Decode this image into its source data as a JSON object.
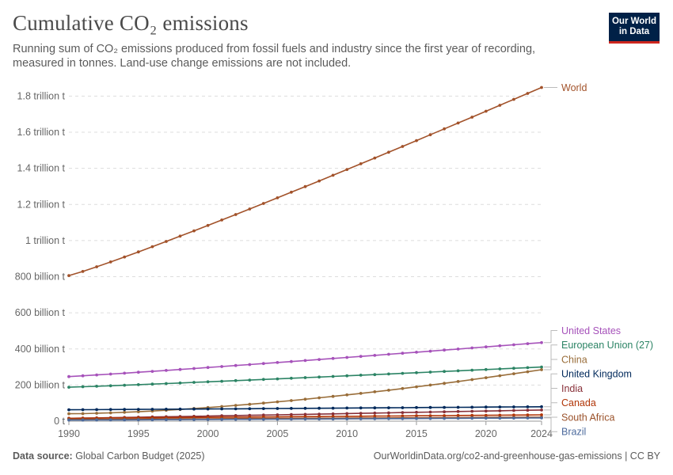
{
  "header": {
    "title": "Cumulative CO₂ emissions",
    "subtitle": "Running sum of CO₂ emissions produced from fossil fuels and industry since the first year of recording, measured in tonnes. Land-use change emissions are not included."
  },
  "logo": {
    "line1": "Our World",
    "line2": "in Data",
    "bg": "#002147",
    "accent": "#ce261e"
  },
  "footer": {
    "source_label": "Data source:",
    "source_text": "Global Carbon Budget (2025)",
    "url": "OurWorldinData.org/co2-and-greenhouse-gas-emissions | CC BY"
  },
  "chart_data": {
    "type": "line",
    "title": "Cumulative CO₂ emissions",
    "xlim": [
      1990,
      2024
    ],
    "ylim": [
      0,
      1850000000000
    ],
    "x_ticks": [
      {
        "value": 1990,
        "label": "1990"
      },
      {
        "value": 1995,
        "label": "1995"
      },
      {
        "value": 2000,
        "label": "2000"
      },
      {
        "value": 2005,
        "label": "2005"
      },
      {
        "value": 2010,
        "label": "2010"
      },
      {
        "value": 2015,
        "label": "2015"
      },
      {
        "value": 2020,
        "label": "2020"
      },
      {
        "value": 2024,
        "label": "2024"
      }
    ],
    "y_ticks": [
      {
        "value": 0,
        "label": "0 t"
      },
      {
        "value": 200000000000,
        "label": "200 billion t"
      },
      {
        "value": 400000000000,
        "label": "400 billion t"
      },
      {
        "value": 600000000000,
        "label": "600 billion t"
      },
      {
        "value": 800000000000,
        "label": "800 billion t"
      },
      {
        "value": 1000000000000,
        "label": "1 trillion t"
      },
      {
        "value": 1200000000000,
        "label": "1.2 trillion t"
      },
      {
        "value": 1400000000000,
        "label": "1.4 trillion t"
      },
      {
        "value": 1600000000000,
        "label": "1.6 trillion t"
      },
      {
        "value": 1800000000000,
        "label": "1.8 trillion t"
      }
    ],
    "grid": true,
    "legend": "right",
    "series": [
      {
        "name": "World",
        "color": "#a2522a",
        "start": 806000000000,
        "end": 1848000000000
      },
      {
        "name": "United States",
        "color": "#a652ba",
        "start": 247000000000,
        "end": 435000000000
      },
      {
        "name": "European Union (27)",
        "color": "#2c8465",
        "start": 188000000000,
        "end": 300000000000
      },
      {
        "name": "China",
        "color": "#996d39",
        "start": 41000000000,
        "end": 285000000000
      },
      {
        "name": "United Kingdom",
        "color": "#00295b",
        "start": 63000000000,
        "end": 80000000000
      },
      {
        "name": "India",
        "color": "#883039",
        "start": 16000000000,
        "end": 62000000000
      },
      {
        "name": "Canada",
        "color": "#b13507",
        "start": 16000000000,
        "end": 35000000000
      },
      {
        "name": "South Africa",
        "color": "#9a5129",
        "start": 10000000000,
        "end": 22000000000
      },
      {
        "name": "Brazil",
        "color": "#4c6a9c",
        "start": 6000000000,
        "end": 18000000000
      }
    ],
    "label_y": {
      "World": 1848000000000,
      "United States": 502000000000,
      "European Union (27)": 422000000000,
      "China": 342000000000,
      "United Kingdom": 262000000000,
      "India": 182000000000,
      "Canada": 102000000000,
      "South Africa": 22000000000,
      "Brazil": -58000000000
    }
  }
}
